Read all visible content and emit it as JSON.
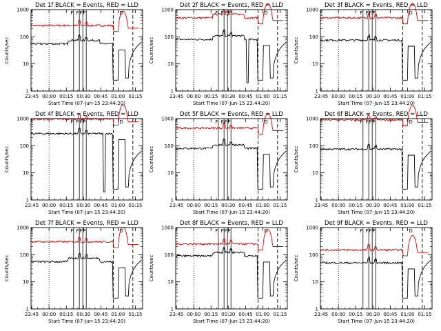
{
  "panels": [
    {
      "title": "Det 1f BLACK = Events, RED = LLD",
      "xlabel": "Start Time (07-Jun-15 23:44:20)",
      "ylabel": "Counts/sec",
      "black_level": 55,
      "red_level": 260,
      "black_profile": "hump",
      "red_profile": "flat",
      "black_drop_at": null
    },
    {
      "title": "Det 2f BLACK = Events, RED = LLD",
      "xlabel": "Start Time (07-Jun-15 23:44:20)",
      "ylabel": "Counts/sec",
      "black_level": 80,
      "red_level": 500,
      "black_profile": "hump",
      "red_profile": "hump",
      "black_drop_at": 61.5
    },
    {
      "title": "Det 3f BLACK = Events, RED = LLD",
      "xlabel": "Start Time (07-Jun-15 23:44:20)",
      "ylabel": "Counts/sec",
      "black_level": 75,
      "red_level": 500,
      "black_profile": "flat",
      "red_profile": "flat",
      "black_drop_at": null
    },
    {
      "title": "Det 4f BLACK = Events, RED = LLD",
      "xlabel": "Start Time (07-Jun-15 23:44:20)",
      "ylabel": "Counts/sec",
      "black_level": 280,
      "red_level": 950,
      "black_profile": "flat",
      "red_profile": "flat",
      "black_drop_at": 62.5
    },
    {
      "title": "Det 5f BLACK = Events, RED = LLD",
      "xlabel": "Start Time (07-Jun-15 23:44:20)",
      "ylabel": "Counts/sec",
      "black_level": 80,
      "red_level": 450,
      "black_profile": "hump",
      "red_profile": "flat",
      "black_drop_at": null
    },
    {
      "title": "Det 6f BLACK = Events, RED = LLD",
      "xlabel": "Start Time (07-Jun-15 23:44:20)",
      "ylabel": "Counts/sec",
      "black_level": 75,
      "red_level": 900,
      "black_profile": "flat",
      "red_profile": "flat",
      "black_drop_at": null
    },
    {
      "title": "Det 7f BLACK = Events, RED = LLD",
      "xlabel": "Start Time (07-Jun-15 23:44:20)",
      "ylabel": "Counts/sec",
      "black_level": 55,
      "red_level": 300,
      "black_profile": "hump",
      "red_profile": "flat",
      "black_drop_at": null
    },
    {
      "title": "Det 8f BLACK = Events, RED = LLD",
      "xlabel": "Start Time (07-Jun-15 23:44:20)",
      "ylabel": "Counts/sec",
      "black_level": 90,
      "red_level": 250,
      "black_profile": "hump",
      "red_profile": "flat",
      "black_drop_at": null
    },
    {
      "title": "Det 9f BLACK = Events, RED = LLD",
      "xlabel": "Start Time (07-Jun-15 23:44:20)",
      "ylabel": "Counts/sec",
      "black_level": 50,
      "red_level": 150,
      "black_profile": "flat",
      "red_profile": "flat",
      "black_drop_at": null
    }
  ],
  "chart_data": {
    "type": "line",
    "x_tick_labels": [
      "23:45",
      "00:00",
      "00:15",
      "00:30",
      "00:45",
      "01:00",
      "01:15"
    ],
    "x_tick_minutes": [
      0.67,
      15.67,
      30.67,
      45.67,
      60.67,
      75.67,
      90.67
    ],
    "xlim_minutes_from_start": [
      0,
      97
    ],
    "yscale": "log",
    "ylim": [
      1,
      1000
    ],
    "y_tick_labels": [
      "1",
      "10",
      "100",
      "1000"
    ],
    "y_tick_values": [
      1,
      10,
      100,
      1000
    ],
    "solid_markers_minutes": [
      37,
      42,
      45,
      48
    ],
    "marker_labels": [
      "F",
      "F",
      "F",
      "F"
    ],
    "dotted_marker_minutes": [
      15.67
    ],
    "dashed_marker_minutes": [
      71.5,
      88.5
    ],
    "event_label": "D",
    "event_label_minute": 78.5,
    "series_colors": {
      "events": "#000000",
      "lld": "#dd0000"
    }
  }
}
